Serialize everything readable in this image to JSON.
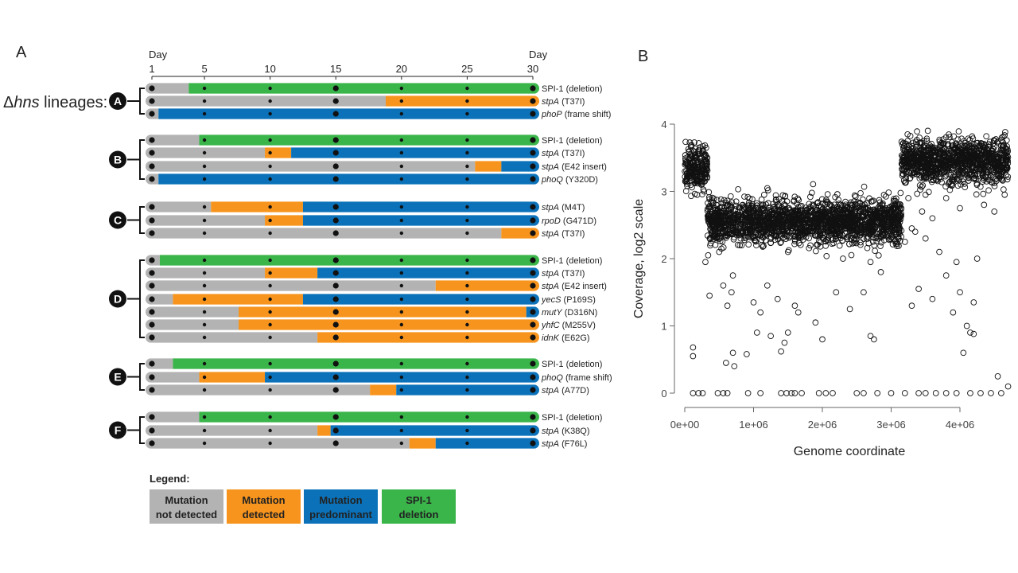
{
  "panel_a": {
    "label": "A",
    "day_start_label": "Day",
    "day_end_label": "Day",
    "ticks": [
      1,
      5,
      10,
      15,
      20,
      25,
      30
    ],
    "lineages_label_symbol": "Δ",
    "lineages_label_italic": "hns",
    "lineages_label_rest": " lineages:",
    "colors": {
      "not_detected": "#b3b3b3",
      "detected": "#f7941d",
      "predominant": "#0b72b9",
      "deletion": "#3ab54a",
      "dot": "#111111"
    },
    "groups": [
      {
        "id": "A",
        "rows": [
          {
            "gene": "SPI-1",
            "detail": "(deletion)",
            "italic": false,
            "segments": [
              {
                "from": 1,
                "to": 3.8,
                "state": "not_detected"
              },
              {
                "from": 3.8,
                "to": 30,
                "state": "deletion"
              }
            ]
          },
          {
            "gene": "stpA",
            "detail": "(T37I)",
            "italic": true,
            "segments": [
              {
                "from": 1,
                "to": 18.8,
                "state": "not_detected"
              },
              {
                "from": 18.8,
                "to": 30,
                "state": "detected"
              }
            ]
          },
          {
            "gene": "phoP",
            "detail": "(frame shift)",
            "italic": true,
            "segments": [
              {
                "from": 1,
                "to": 1.5,
                "state": "not_detected"
              },
              {
                "from": 1.5,
                "to": 30,
                "state": "predominant"
              }
            ]
          }
        ]
      },
      {
        "id": "B",
        "rows": [
          {
            "gene": "SPI-1",
            "detail": "(deletion)",
            "italic": false,
            "segments": [
              {
                "from": 1,
                "to": 4.6,
                "state": "not_detected"
              },
              {
                "from": 4.6,
                "to": 30,
                "state": "deletion"
              }
            ]
          },
          {
            "gene": "stpA",
            "detail": "(T37I)",
            "italic": true,
            "segments": [
              {
                "from": 1,
                "to": 9.6,
                "state": "not_detected"
              },
              {
                "from": 9.6,
                "to": 11.6,
                "state": "detected"
              },
              {
                "from": 11.6,
                "to": 30,
                "state": "predominant"
              }
            ]
          },
          {
            "gene": "stpA",
            "detail": "(E42 insert)",
            "italic": true,
            "segments": [
              {
                "from": 1,
                "to": 25.6,
                "state": "not_detected"
              },
              {
                "from": 25.6,
                "to": 27.6,
                "state": "detected"
              },
              {
                "from": 27.6,
                "to": 30,
                "state": "predominant"
              }
            ]
          },
          {
            "gene": "phoQ",
            "detail": "(Y320D)",
            "italic": true,
            "segments": [
              {
                "from": 1,
                "to": 1.5,
                "state": "not_detected"
              },
              {
                "from": 1.5,
                "to": 30,
                "state": "predominant"
              }
            ]
          }
        ]
      },
      {
        "id": "C",
        "rows": [
          {
            "gene": "stpA",
            "detail": "(M4T)",
            "italic": true,
            "segments": [
              {
                "from": 1,
                "to": 5.5,
                "state": "not_detected"
              },
              {
                "from": 5.5,
                "to": 12.5,
                "state": "detected"
              },
              {
                "from": 12.5,
                "to": 30,
                "state": "predominant"
              }
            ]
          },
          {
            "gene": "rpoD",
            "detail": "(G471D)",
            "italic": true,
            "segments": [
              {
                "from": 1,
                "to": 9.6,
                "state": "not_detected"
              },
              {
                "from": 9.6,
                "to": 12.5,
                "state": "detected"
              },
              {
                "from": 12.5,
                "to": 30,
                "state": "predominant"
              }
            ]
          },
          {
            "gene": "stpA",
            "detail": "(T37I)",
            "italic": true,
            "segments": [
              {
                "from": 1,
                "to": 27.6,
                "state": "not_detected"
              },
              {
                "from": 27.6,
                "to": 30,
                "state": "detected"
              }
            ]
          }
        ]
      },
      {
        "id": "D",
        "rows": [
          {
            "gene": "SPI-1",
            "detail": "(deletion)",
            "italic": false,
            "segments": [
              {
                "from": 1,
                "to": 1.6,
                "state": "not_detected"
              },
              {
                "from": 1.6,
                "to": 30,
                "state": "deletion"
              }
            ]
          },
          {
            "gene": "stpA",
            "detail": "(T37I)",
            "italic": true,
            "segments": [
              {
                "from": 1,
                "to": 9.6,
                "state": "not_detected"
              },
              {
                "from": 9.6,
                "to": 13.6,
                "state": "detected"
              },
              {
                "from": 13.6,
                "to": 30,
                "state": "predominant"
              }
            ]
          },
          {
            "gene": "stpA",
            "detail": "(E42 insert)",
            "italic": true,
            "segments": [
              {
                "from": 1,
                "to": 22.6,
                "state": "not_detected"
              },
              {
                "from": 22.6,
                "to": 30,
                "state": "detected"
              }
            ]
          },
          {
            "gene": "yecS",
            "detail": "(P169S)",
            "italic": true,
            "segments": [
              {
                "from": 1,
                "to": 2.6,
                "state": "not_detected"
              },
              {
                "from": 2.6,
                "to": 12.5,
                "state": "detected"
              },
              {
                "from": 12.5,
                "to": 30,
                "state": "predominant"
              }
            ]
          },
          {
            "gene": "mutY",
            "detail": "(D316N)",
            "italic": true,
            "segments": [
              {
                "from": 1,
                "to": 7.6,
                "state": "not_detected"
              },
              {
                "from": 7.6,
                "to": 29.5,
                "state": "detected"
              },
              {
                "from": 29.5,
                "to": 30,
                "state": "predominant"
              }
            ]
          },
          {
            "gene": "yhfC",
            "detail": "(M255V)",
            "italic": true,
            "segments": [
              {
                "from": 1,
                "to": 7.6,
                "state": "not_detected"
              },
              {
                "from": 7.6,
                "to": 30,
                "state": "detected"
              }
            ]
          },
          {
            "gene": "idnK",
            "detail": "(E62G)",
            "italic": true,
            "segments": [
              {
                "from": 1,
                "to": 13.6,
                "state": "not_detected"
              },
              {
                "from": 13.6,
                "to": 30,
                "state": "detected"
              }
            ]
          }
        ]
      },
      {
        "id": "E",
        "rows": [
          {
            "gene": "SPI-1",
            "detail": "(deletion)",
            "italic": false,
            "segments": [
              {
                "from": 1,
                "to": 2.6,
                "state": "not_detected"
              },
              {
                "from": 2.6,
                "to": 30,
                "state": "deletion"
              }
            ]
          },
          {
            "gene": "phoQ",
            "detail": "(frame shift)",
            "italic": true,
            "segments": [
              {
                "from": 1,
                "to": 4.6,
                "state": "not_detected"
              },
              {
                "from": 4.6,
                "to": 9.6,
                "state": "detected"
              },
              {
                "from": 9.6,
                "to": 30,
                "state": "predominant"
              }
            ]
          },
          {
            "gene": "stpA",
            "detail": "(A77D)",
            "italic": true,
            "segments": [
              {
                "from": 1,
                "to": 17.6,
                "state": "not_detected"
              },
              {
                "from": 17.6,
                "to": 19.6,
                "state": "detected"
              },
              {
                "from": 19.6,
                "to": 30,
                "state": "predominant"
              }
            ]
          }
        ]
      },
      {
        "id": "F",
        "rows": [
          {
            "gene": "SPI-1",
            "detail": "(deletion)",
            "italic": false,
            "segments": [
              {
                "from": 1,
                "to": 4.6,
                "state": "not_detected"
              },
              {
                "from": 4.6,
                "to": 30,
                "state": "deletion"
              }
            ]
          },
          {
            "gene": "stpA",
            "detail": "(K38Q)",
            "italic": true,
            "segments": [
              {
                "from": 1,
                "to": 13.6,
                "state": "not_detected"
              },
              {
                "from": 13.6,
                "to": 14.6,
                "state": "detected"
              },
              {
                "from": 14.6,
                "to": 30,
                "state": "predominant"
              }
            ]
          },
          {
            "gene": "stpA",
            "detail": "(F76L)",
            "italic": true,
            "segments": [
              {
                "from": 1,
                "to": 20.6,
                "state": "not_detected"
              },
              {
                "from": 20.6,
                "to": 22.6,
                "state": "detected"
              },
              {
                "from": 22.6,
                "to": 30,
                "state": "predominant"
              }
            ]
          }
        ]
      }
    ],
    "legend": {
      "title": "Legend:",
      "items": [
        {
          "state": "not_detected",
          "line1": "Mutation",
          "line2": "not detected"
        },
        {
          "state": "detected",
          "line1": "Mutation",
          "line2": "detected"
        },
        {
          "state": "predominant",
          "line1": "Mutation",
          "line2": "predominant"
        },
        {
          "state": "deletion",
          "line1": "SPI-1",
          "line2": "deletion"
        }
      ]
    }
  },
  "panel_b": {
    "label": "B",
    "chart_data": {
      "type": "scatter",
      "title": "",
      "xlabel": "Genome coordinate",
      "ylabel": "Coverage, log2 scale",
      "xlim": [
        0,
        4800000
      ],
      "ylim": [
        0,
        4
      ],
      "xticks": [
        0,
        1000000,
        2000000,
        3000000,
        4000000
      ],
      "xtick_labels": [
        "0e+00",
        "1e+06",
        "2e+06",
        "3e+06",
        "4e+06"
      ],
      "yticks": [
        0,
        1,
        2,
        3,
        4
      ],
      "ytick_labels": [
        "0",
        "1",
        "2",
        "3",
        "4"
      ],
      "marker": "open-circle",
      "regions": [
        {
          "x_start": 0,
          "x_end": 330000,
          "mean_y": 3.35
        },
        {
          "x_start": 330000,
          "x_end": 3150000,
          "mean_y": 2.55
        },
        {
          "x_start": 3150000,
          "x_end": 4700000,
          "mean_y": 3.45
        }
      ],
      "outliers": [
        [
          120000,
          0
        ],
        [
          200000,
          0
        ],
        [
          260000,
          0
        ],
        [
          480000,
          0
        ],
        [
          560000,
          0
        ],
        [
          620000,
          0
        ],
        [
          920000,
          0
        ],
        [
          1100000,
          0
        ],
        [
          1400000,
          0
        ],
        [
          1480000,
          0
        ],
        [
          1550000,
          0
        ],
        [
          1600000,
          0
        ],
        [
          1700000,
          0
        ],
        [
          1950000,
          0
        ],
        [
          2050000,
          0
        ],
        [
          2150000,
          0
        ],
        [
          2500000,
          0
        ],
        [
          2600000,
          0
        ],
        [
          2800000,
          0
        ],
        [
          3000000,
          0
        ],
        [
          3200000,
          0
        ],
        [
          3400000,
          0
        ],
        [
          3500000,
          0
        ],
        [
          3650000,
          0
        ],
        [
          3800000,
          0
        ],
        [
          3950000,
          0
        ],
        [
          4150000,
          0
        ],
        [
          4300000,
          0
        ],
        [
          4450000,
          0
        ],
        [
          4600000,
          0
        ],
        [
          4550000,
          0.25
        ],
        [
          4700000,
          0.1
        ],
        [
          120000,
          0.55
        ],
        [
          120000,
          0.68
        ],
        [
          600000,
          0.45
        ],
        [
          700000,
          0.6
        ],
        [
          720000,
          0.4
        ],
        [
          900000,
          0.58
        ],
        [
          1050000,
          0.9
        ],
        [
          1250000,
          0.85
        ],
        [
          1400000,
          0.62
        ],
        [
          1450000,
          0.75
        ],
        [
          1500000,
          0.9
        ],
        [
          2000000,
          0.8
        ],
        [
          2700000,
          0.85
        ],
        [
          2750000,
          0.8
        ],
        [
          4050000,
          0.6
        ],
        [
          4150000,
          0.9
        ],
        [
          4200000,
          0.88
        ],
        [
          360000,
          1.45
        ],
        [
          560000,
          1.6
        ],
        [
          620000,
          1.3
        ],
        [
          680000,
          1.5
        ],
        [
          700000,
          1.75
        ],
        [
          1000000,
          1.35
        ],
        [
          1100000,
          1.2
        ],
        [
          1200000,
          1.6
        ],
        [
          1350000,
          1.4
        ],
        [
          1600000,
          1.3
        ],
        [
          1650000,
          1.2
        ],
        [
          1900000,
          1.05
        ],
        [
          2200000,
          1.5
        ],
        [
          2400000,
          1.25
        ],
        [
          2600000,
          1.5
        ],
        [
          2850000,
          1.8
        ],
        [
          3300000,
          1.3
        ],
        [
          3400000,
          1.55
        ],
        [
          3600000,
          1.4
        ],
        [
          3900000,
          1.2
        ],
        [
          4000000,
          1.5
        ],
        [
          4100000,
          1.0
        ],
        [
          4200000,
          1.35
        ],
        [
          300000,
          1.95
        ],
        [
          340000,
          2.05
        ],
        [
          500000,
          2.1
        ],
        [
          800000,
          2.2
        ],
        [
          1500000,
          2.1
        ],
        [
          2300000,
          2.0
        ],
        [
          2700000,
          1.95
        ],
        [
          3200000,
          2.25
        ],
        [
          3500000,
          2.3
        ],
        [
          3700000,
          2.1
        ],
        [
          3800000,
          1.75
        ],
        [
          3950000,
          1.95
        ],
        [
          4250000,
          2.0
        ],
        [
          3300000,
          2.45
        ],
        [
          3450000,
          2.7
        ],
        [
          3600000,
          2.6
        ],
        [
          3800000,
          2.9
        ],
        [
          4000000,
          2.75
        ],
        [
          4350000,
          2.8
        ],
        [
          4500000,
          2.7
        ],
        [
          4650000,
          2.95
        ],
        [
          180000,
          2.95
        ],
        [
          240000,
          3.1
        ],
        [
          280000,
          3.0
        ],
        [
          3250000,
          2.9
        ],
        [
          3500000,
          2.95
        ],
        [
          3350000,
          2.4
        ]
      ]
    }
  }
}
